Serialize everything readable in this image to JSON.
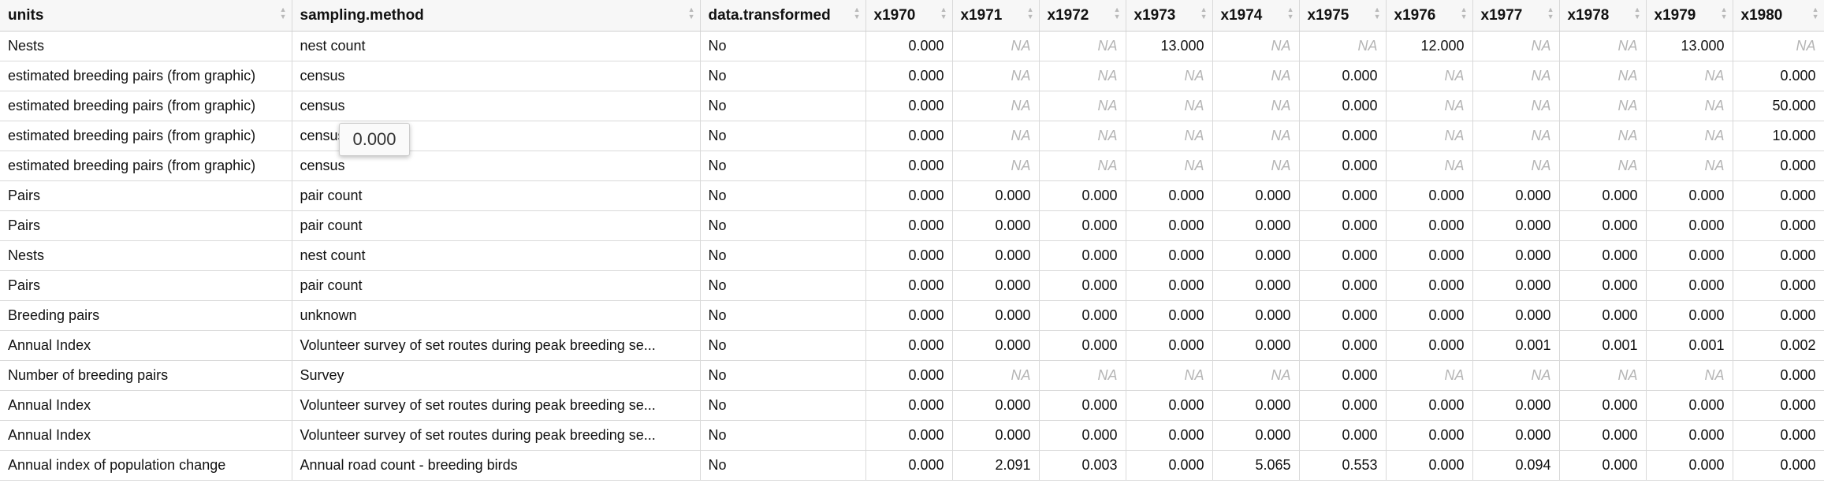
{
  "columns": [
    "units",
    "sampling.method",
    "data.transformed",
    "x1970",
    "x1971",
    "x1972",
    "x1973",
    "x1974",
    "x1975",
    "x1976",
    "x1977",
    "x1978",
    "x1979",
    "x1980"
  ],
  "rows": [
    [
      "Nests",
      "nest count",
      "No",
      "0.000",
      "NA",
      "NA",
      "13.000",
      "NA",
      "NA",
      "12.000",
      "NA",
      "NA",
      "13.000",
      "NA"
    ],
    [
      "estimated breeding pairs (from graphic)",
      "census",
      "No",
      "0.000",
      "NA",
      "NA",
      "NA",
      "NA",
      "0.000",
      "NA",
      "NA",
      "NA",
      "NA",
      "0.000"
    ],
    [
      "estimated breeding pairs (from graphic)",
      "census",
      "No",
      "0.000",
      "NA",
      "NA",
      "NA",
      "NA",
      "0.000",
      "NA",
      "NA",
      "NA",
      "NA",
      "50.000"
    ],
    [
      "estimated breeding pairs (from graphic)",
      "census",
      "No",
      "0.000",
      "NA",
      "NA",
      "NA",
      "NA",
      "0.000",
      "NA",
      "NA",
      "NA",
      "NA",
      "10.000"
    ],
    [
      "estimated breeding pairs (from graphic)",
      "census",
      "No",
      "0.000",
      "NA",
      "NA",
      "NA",
      "NA",
      "0.000",
      "NA",
      "NA",
      "NA",
      "NA",
      "0.000"
    ],
    [
      "Pairs",
      "pair count",
      "No",
      "0.000",
      "0.000",
      "0.000",
      "0.000",
      "0.000",
      "0.000",
      "0.000",
      "0.000",
      "0.000",
      "0.000",
      "0.000"
    ],
    [
      "Pairs",
      "pair count",
      "No",
      "0.000",
      "0.000",
      "0.000",
      "0.000",
      "0.000",
      "0.000",
      "0.000",
      "0.000",
      "0.000",
      "0.000",
      "0.000"
    ],
    [
      "Nests",
      "nest count",
      "No",
      "0.000",
      "0.000",
      "0.000",
      "0.000",
      "0.000",
      "0.000",
      "0.000",
      "0.000",
      "0.000",
      "0.000",
      "0.000"
    ],
    [
      "Pairs",
      "pair count",
      "No",
      "0.000",
      "0.000",
      "0.000",
      "0.000",
      "0.000",
      "0.000",
      "0.000",
      "0.000",
      "0.000",
      "0.000",
      "0.000"
    ],
    [
      "Breeding pairs",
      "unknown",
      "No",
      "0.000",
      "0.000",
      "0.000",
      "0.000",
      "0.000",
      "0.000",
      "0.000",
      "0.000",
      "0.000",
      "0.000",
      "0.000"
    ],
    [
      "Annual Index",
      "Volunteer survey of set routes during peak breeding se...",
      "No",
      "0.000",
      "0.000",
      "0.000",
      "0.000",
      "0.000",
      "0.000",
      "0.000",
      "0.001",
      "0.001",
      "0.001",
      "0.002"
    ],
    [
      "Number of breeding pairs",
      "Survey",
      "No",
      "0.000",
      "NA",
      "NA",
      "NA",
      "NA",
      "0.000",
      "NA",
      "NA",
      "NA",
      "NA",
      "0.000"
    ],
    [
      "Annual Index",
      "Volunteer survey of set routes during peak breeding se...",
      "No",
      "0.000",
      "0.000",
      "0.000",
      "0.000",
      "0.000",
      "0.000",
      "0.000",
      "0.000",
      "0.000",
      "0.000",
      "0.000"
    ],
    [
      "Annual Index",
      "Volunteer survey of set routes during peak breeding se...",
      "No",
      "0.000",
      "0.000",
      "0.000",
      "0.000",
      "0.000",
      "0.000",
      "0.000",
      "0.000",
      "0.000",
      "0.000",
      "0.000"
    ],
    [
      "Annual index of population change",
      "Annual road count - breeding birds",
      "No",
      "0.000",
      "2.091",
      "0.003",
      "0.000",
      "5.065",
      "0.553",
      "0.000",
      "0.094",
      "0.000",
      "0.000",
      "0.000"
    ]
  ],
  "tooltip": "0.000"
}
